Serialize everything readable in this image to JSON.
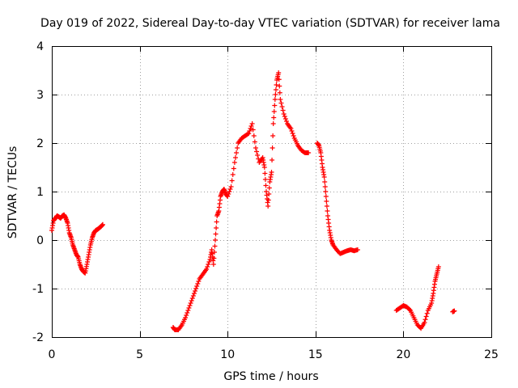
{
  "chart_data": {
    "type": "scatter",
    "title": "Day 019 of 2022, Sidereal Day-to-day VTEC variation (SDTVAR) for receiver lama",
    "xlabel": "GPS time / hours",
    "ylabel": "SDTVAR / TECUs",
    "xlim": [
      0,
      25
    ],
    "ylim": [
      -2,
      4
    ],
    "xticks": [
      0,
      5,
      10,
      15,
      20,
      25
    ],
    "yticks": [
      -2,
      -1,
      0,
      1,
      2,
      3,
      4
    ],
    "grid": true,
    "marker": "+",
    "colors": {
      "series": "#ff0000",
      "grid": "#a0a0a0",
      "axis": "#000000"
    },
    "segments": [
      {
        "name": "segment-1",
        "points": [
          [
            0.0,
            0.2
          ],
          [
            0.1,
            0.4
          ],
          [
            0.2,
            0.45
          ],
          [
            0.3,
            0.5
          ],
          [
            0.4,
            0.48
          ],
          [
            0.5,
            0.45
          ],
          [
            0.6,
            0.5
          ],
          [
            0.7,
            0.52
          ],
          [
            0.8,
            0.45
          ],
          [
            0.9,
            0.35
          ],
          [
            1.0,
            0.15
          ],
          [
            1.1,
            0.05
          ],
          [
            1.2,
            -0.1
          ],
          [
            1.3,
            -0.2
          ],
          [
            1.4,
            -0.3
          ],
          [
            1.5,
            -0.35
          ],
          [
            1.6,
            -0.5
          ],
          [
            1.7,
            -0.6
          ],
          [
            1.8,
            -0.65
          ],
          [
            1.9,
            -0.68
          ],
          [
            2.0,
            -0.5
          ],
          [
            2.1,
            -0.3
          ],
          [
            2.2,
            -0.1
          ],
          [
            2.3,
            0.05
          ],
          [
            2.4,
            0.15
          ],
          [
            2.5,
            0.2
          ],
          [
            2.6,
            0.22
          ],
          [
            2.7,
            0.25
          ],
          [
            2.8,
            0.28
          ],
          [
            2.9,
            0.32
          ]
        ]
      },
      {
        "name": "segment-2",
        "points": [
          [
            6.9,
            -1.8
          ],
          [
            7.0,
            -1.85
          ],
          [
            7.2,
            -1.85
          ],
          [
            7.4,
            -1.75
          ],
          [
            7.6,
            -1.6
          ],
          [
            7.8,
            -1.4
          ],
          [
            8.0,
            -1.2
          ],
          [
            8.2,
            -1.0
          ],
          [
            8.4,
            -0.8
          ],
          [
            8.6,
            -0.7
          ],
          [
            8.8,
            -0.6
          ],
          [
            9.0,
            -0.4
          ],
          [
            9.1,
            -0.2
          ],
          [
            9.2,
            -0.5
          ],
          [
            9.3,
            0.0
          ],
          [
            9.4,
            0.5
          ],
          [
            9.5,
            0.6
          ],
          [
            9.6,
            0.9
          ],
          [
            9.7,
            1.0
          ],
          [
            9.8,
            1.05
          ],
          [
            9.9,
            0.95
          ],
          [
            10.0,
            0.9
          ],
          [
            10.2,
            1.1
          ],
          [
            10.4,
            1.6
          ],
          [
            10.6,
            2.0
          ],
          [
            10.8,
            2.1
          ],
          [
            11.0,
            2.15
          ],
          [
            11.2,
            2.2
          ],
          [
            11.4,
            2.4
          ],
          [
            11.6,
            1.9
          ],
          [
            11.8,
            1.6
          ],
          [
            12.0,
            1.7
          ],
          [
            12.1,
            1.5
          ],
          [
            12.2,
            1.0
          ],
          [
            12.3,
            0.7
          ],
          [
            12.4,
            1.2
          ],
          [
            12.5,
            1.4
          ],
          [
            12.6,
            2.4
          ],
          [
            12.7,
            2.9
          ],
          [
            12.8,
            3.3
          ],
          [
            12.9,
            3.45
          ],
          [
            13.0,
            2.9
          ],
          [
            13.2,
            2.6
          ],
          [
            13.4,
            2.4
          ],
          [
            13.6,
            2.3
          ],
          [
            13.8,
            2.1
          ],
          [
            14.0,
            1.95
          ],
          [
            14.2,
            1.85
          ],
          [
            14.4,
            1.8
          ],
          [
            14.6,
            1.8
          ]
        ]
      },
      {
        "name": "segment-3",
        "points": [
          [
            15.1,
            2.0
          ],
          [
            15.2,
            1.95
          ],
          [
            15.3,
            1.8
          ],
          [
            15.4,
            1.5
          ],
          [
            15.5,
            1.3
          ],
          [
            15.6,
            0.9
          ],
          [
            15.7,
            0.5
          ],
          [
            15.8,
            0.2
          ],
          [
            15.9,
            0.0
          ],
          [
            16.0,
            -0.1
          ],
          [
            16.2,
            -0.2
          ],
          [
            16.4,
            -0.28
          ],
          [
            16.6,
            -0.25
          ],
          [
            16.8,
            -0.22
          ],
          [
            17.0,
            -0.2
          ],
          [
            17.2,
            -0.22
          ],
          [
            17.4,
            -0.2
          ]
        ]
      },
      {
        "name": "segment-4",
        "points": [
          [
            19.6,
            -1.45
          ],
          [
            19.8,
            -1.4
          ],
          [
            20.0,
            -1.35
          ],
          [
            20.2,
            -1.38
          ],
          [
            20.4,
            -1.45
          ],
          [
            20.6,
            -1.6
          ],
          [
            20.8,
            -1.75
          ],
          [
            21.0,
            -1.82
          ],
          [
            21.2,
            -1.7
          ],
          [
            21.4,
            -1.45
          ],
          [
            21.6,
            -1.3
          ],
          [
            21.7,
            -1.1
          ],
          [
            21.8,
            -0.85
          ],
          [
            21.9,
            -0.7
          ],
          [
            22.0,
            -0.55
          ]
        ]
      },
      {
        "name": "segment-5",
        "points": [
          [
            22.8,
            -1.48
          ],
          [
            22.9,
            -1.46
          ]
        ]
      }
    ]
  }
}
